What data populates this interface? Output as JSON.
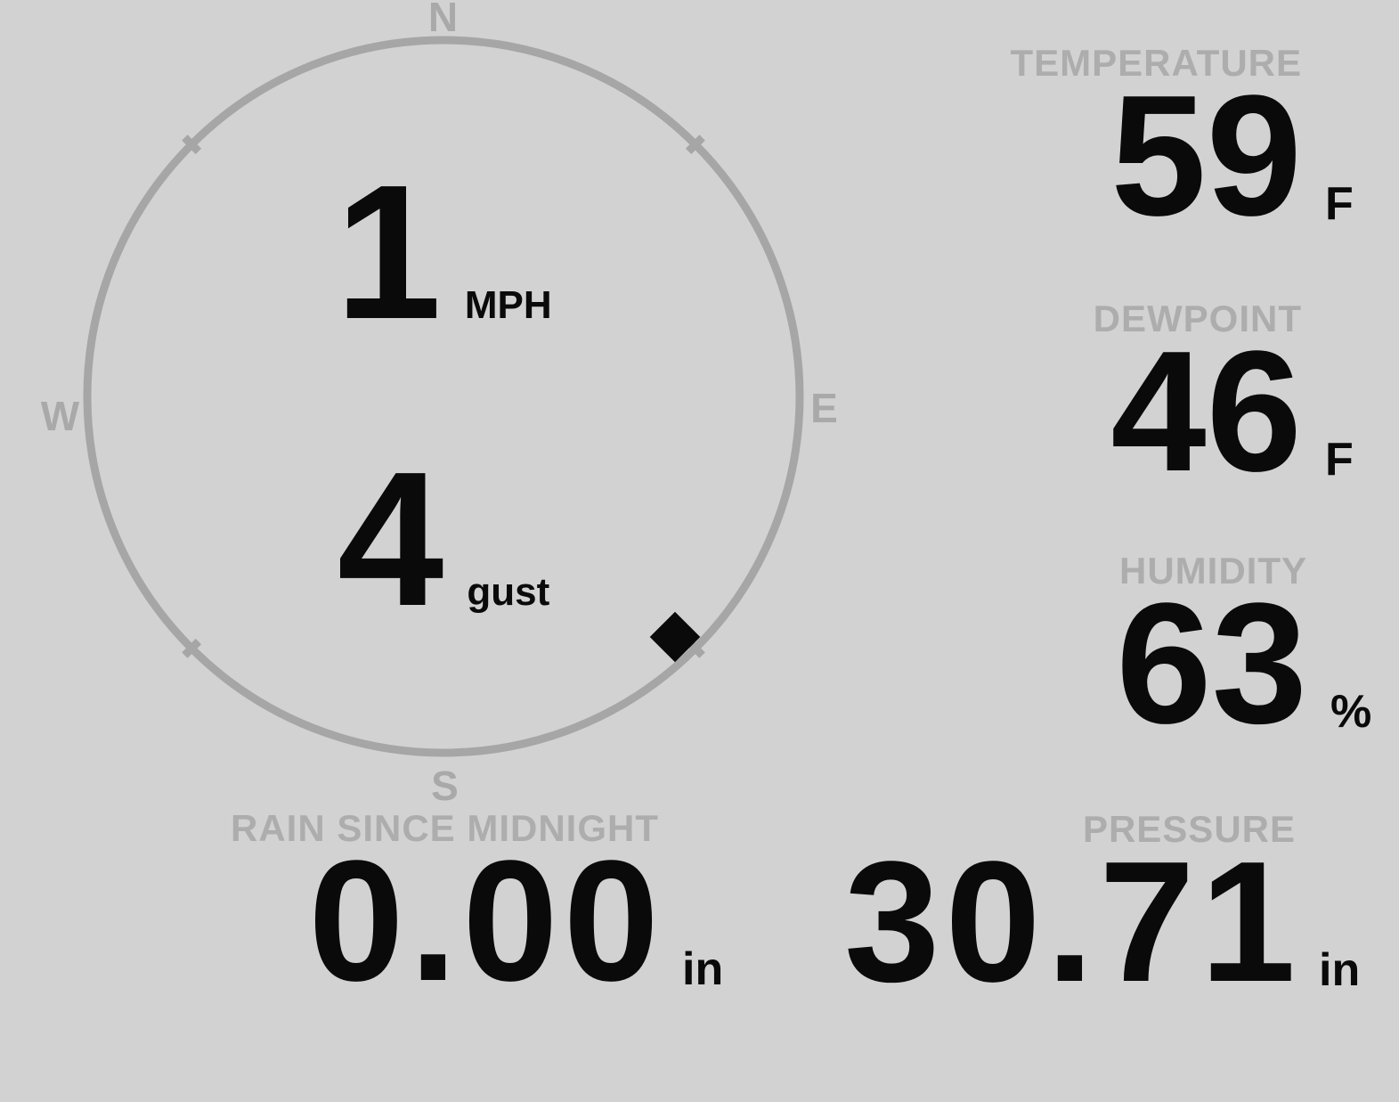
{
  "display": {
    "background_color": "#d2d2d2",
    "label_color": "#adadad",
    "value_color": "#0a0a0a",
    "dial_color": "#a6a6a6"
  },
  "wind": {
    "cardinals": {
      "north": "N",
      "east": "E",
      "south": "S",
      "west": "W"
    },
    "speed": {
      "value": "1",
      "unit": "MPH"
    },
    "gust": {
      "value": "4",
      "unit": "gust"
    },
    "direction_deg": 136
  },
  "metrics": {
    "temperature": {
      "label": "TEMPERATURE",
      "value": "59",
      "unit": "F"
    },
    "dewpoint": {
      "label": "DEWPOINT",
      "value": "46",
      "unit": "F"
    },
    "humidity": {
      "label": "HUMIDITY",
      "value": "63",
      "unit": "%"
    },
    "rain": {
      "label": "RAIN SINCE MIDNIGHT",
      "value": "0.00",
      "unit": "in"
    },
    "pressure": {
      "label": "PRESSURE",
      "value": "30.71",
      "unit": "in"
    }
  }
}
